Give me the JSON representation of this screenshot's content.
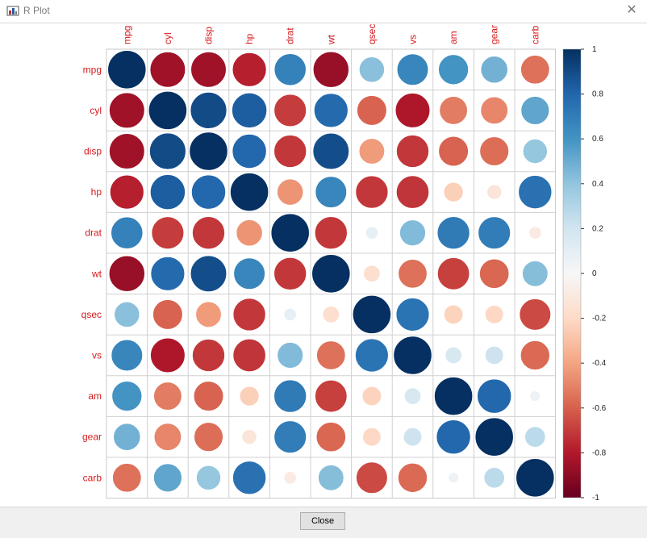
{
  "window": {
    "title": "R Plot",
    "close_glyph": "✕",
    "app_icon": "r-plot-app-icon"
  },
  "footer": {
    "close_label": "Close"
  },
  "colors": {
    "label_red": "#d7191c",
    "strong_negative": "#67001f",
    "neutral": "#f7f7f7",
    "strong_positive": "#053061"
  },
  "chart_data": {
    "type": "heatmap",
    "subtype": "corrplot-circle",
    "variables": [
      "mpg",
      "cyl",
      "disp",
      "hp",
      "drat",
      "wt",
      "qsec",
      "vs",
      "am",
      "gear",
      "carb"
    ],
    "matrix": [
      [
        1.0,
        -0.85,
        -0.85,
        -0.78,
        0.68,
        -0.87,
        0.42,
        0.66,
        0.6,
        0.48,
        -0.55
      ],
      [
        -0.85,
        1.0,
        0.9,
        0.83,
        -0.7,
        0.78,
        -0.59,
        -0.81,
        -0.52,
        -0.49,
        0.53
      ],
      [
        -0.85,
        0.9,
        1.0,
        0.79,
        -0.71,
        0.89,
        -0.43,
        -0.71,
        -0.59,
        -0.56,
        0.39
      ],
      [
        -0.78,
        0.83,
        0.79,
        1.0,
        -0.45,
        0.66,
        -0.71,
        -0.72,
        -0.24,
        -0.13,
        0.75
      ],
      [
        0.68,
        -0.7,
        -0.71,
        -0.45,
        1.0,
        -0.71,
        0.09,
        0.44,
        0.71,
        0.7,
        -0.09
      ],
      [
        -0.87,
        0.78,
        0.89,
        0.66,
        -0.71,
        1.0,
        -0.17,
        -0.55,
        -0.69,
        -0.58,
        0.43
      ],
      [
        0.42,
        -0.59,
        -0.43,
        -0.71,
        0.09,
        -0.17,
        1.0,
        0.74,
        -0.23,
        -0.21,
        -0.66
      ],
      [
        0.66,
        -0.81,
        -0.71,
        -0.72,
        0.44,
        -0.55,
        0.74,
        1.0,
        0.17,
        0.21,
        -0.57
      ],
      [
        0.6,
        -0.52,
        -0.59,
        -0.24,
        0.71,
        -0.69,
        -0.23,
        0.17,
        1.0,
        0.79,
        0.06
      ],
      [
        0.48,
        -0.49,
        -0.56,
        -0.13,
        0.7,
        -0.58,
        -0.21,
        0.21,
        0.79,
        1.0,
        0.27
      ],
      [
        -0.55,
        0.53,
        0.39,
        0.75,
        -0.09,
        0.43,
        -0.66,
        -0.57,
        0.06,
        0.27,
        1.0
      ]
    ],
    "colorbar": {
      "range": [
        -1,
        1
      ],
      "ticks": [
        "1",
        "0.8",
        "0.6",
        "0.4",
        "0.2",
        "0",
        "-0.2",
        "-0.4",
        "-0.6",
        "-0.8",
        "-1"
      ]
    },
    "legend_position": "right"
  }
}
